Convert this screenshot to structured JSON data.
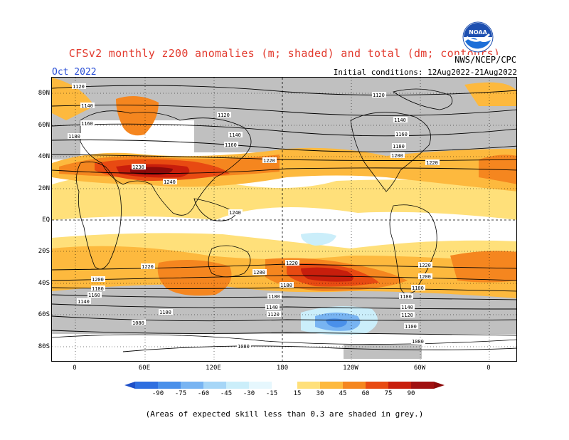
{
  "title": "CFSv2 monthly z200 anomalies (m; shaded) and total (dm; contours)",
  "month": "Oct 2022",
  "agency": "NWS/NCEP/CPC",
  "logo_text": "NOAA",
  "initial_conditions": "Initial conditions: 12Aug2022-21Aug2022",
  "lat_labels": [
    "80N",
    "60N",
    "40N",
    "20N",
    "EQ",
    "20S",
    "40S",
    "60S",
    "80S"
  ],
  "lon_labels": [
    "0",
    "60E",
    "120E",
    "180",
    "120W",
    "60W",
    "0"
  ],
  "colorbar": {
    "ticks": [
      "-90",
      "-75",
      "-60",
      "-45",
      "-30",
      "-15",
      "15",
      "30",
      "45",
      "60",
      "75",
      "90"
    ],
    "colors": [
      "#1e50c8",
      "#2e6fe0",
      "#4a90ea",
      "#78b4f2",
      "#a6d6f7",
      "#cbeefa",
      "#ffffff",
      "#ffe07a",
      "#fdb93e",
      "#f5861f",
      "#e84a12",
      "#c81e0c",
      "#8c0a0a"
    ]
  },
  "contour_labels": [
    "1120",
    "1140",
    "1160",
    "1180",
    "1200",
    "1220",
    "1240",
    "1230",
    "1100",
    "1080"
  ],
  "footnote": "(Areas of expected skill less than 0.3 are shaded in grey.)"
}
